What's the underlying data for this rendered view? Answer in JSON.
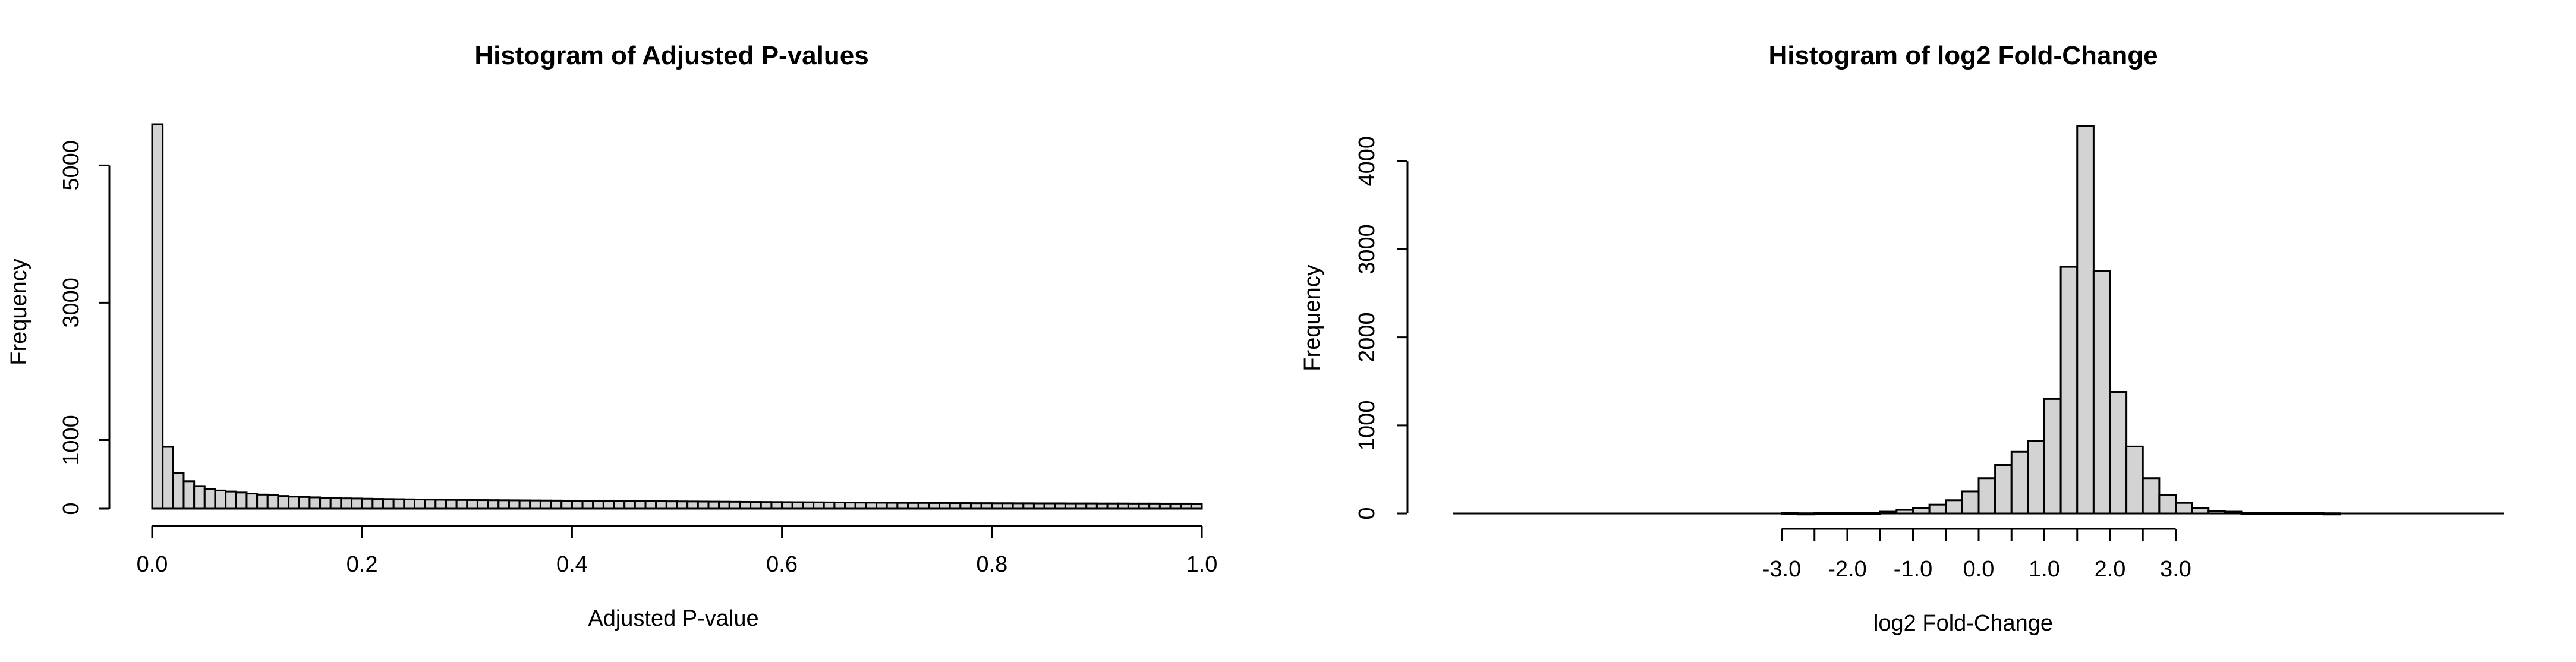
{
  "colors": {
    "bar_fill": "#d3d3d3",
    "bar_stroke": "#000000",
    "background": "#ffffff"
  },
  "chart_data": [
    {
      "type": "bar",
      "title": "Histogram of Adjusted P-values",
      "xlabel": "Adjusted P-value",
      "ylabel": "Frequency",
      "bin_start": 0.0,
      "bin_width": 0.01,
      "xlim": [
        0.0,
        1.0
      ],
      "ylim": [
        0,
        5600
      ],
      "x_ticks": [
        {
          "value": 0.0,
          "label": "0.0"
        },
        {
          "value": 0.2,
          "label": "0.2"
        },
        {
          "value": 0.4,
          "label": "0.4"
        },
        {
          "value": 0.6,
          "label": "0.6"
        },
        {
          "value": 0.8,
          "label": "0.8"
        },
        {
          "value": 1.0,
          "label": "1.0"
        }
      ],
      "y_ticks": [
        {
          "value": 0,
          "label": "0"
        },
        {
          "value": 1000,
          "label": "1000"
        },
        {
          "value": 3000,
          "label": "3000"
        },
        {
          "value": 5000,
          "label": "5000"
        }
      ],
      "values": [
        5600,
        900,
        520,
        400,
        330,
        290,
        265,
        250,
        235,
        220,
        205,
        195,
        185,
        175,
        170,
        165,
        160,
        155,
        150,
        148,
        145,
        142,
        140,
        138,
        136,
        134,
        132,
        130,
        128,
        127,
        126,
        125,
        124,
        123,
        122,
        121,
        120,
        119,
        118,
        117,
        116,
        115,
        114,
        113,
        112,
        111,
        110,
        109,
        108,
        107,
        106,
        105,
        104,
        103,
        102,
        101,
        100,
        99,
        98,
        97,
        96,
        95,
        94,
        93,
        92,
        91,
        90,
        89,
        88,
        87,
        86,
        85,
        84,
        84,
        83,
        83,
        82,
        82,
        81,
        81,
        80,
        80,
        79,
        79,
        78,
        78,
        78,
        77,
        77,
        77,
        76,
        76,
        76,
        75,
        75,
        75,
        74,
        74,
        74,
        73
      ]
    },
    {
      "type": "bar",
      "title": "Histogram of log2 Fold-Change",
      "xlabel": "log2 Fold-Change",
      "ylabel": "Frequency",
      "bin_start": -8.0,
      "bin_width": 0.25,
      "xlim": [
        -8.0,
        8.0
      ],
      "ylim": [
        0,
        4400
      ],
      "x_ticks": [
        {
          "value": -3.0,
          "label": "-3.0"
        },
        {
          "value": -2.0,
          "label": "-2.0"
        },
        {
          "value": -1.0,
          "label": "-1.0"
        },
        {
          "value": 0.0,
          "label": "0.0"
        },
        {
          "value": 1.0,
          "label": "1.0"
        },
        {
          "value": 2.0,
          "label": "2.0"
        },
        {
          "value": 3.0,
          "label": "3.0"
        }
      ],
      "x_minor_ticks": [
        -2.5,
        -1.5,
        -0.5,
        0.5,
        1.5,
        2.5
      ],
      "y_ticks": [
        {
          "value": 0,
          "label": "0"
        },
        {
          "value": 1000,
          "label": "1000"
        },
        {
          "value": 2000,
          "label": "2000"
        },
        {
          "value": 3000,
          "label": "3000"
        },
        {
          "value": 4000,
          "label": "4000"
        }
      ],
      "values": [
        0,
        0,
        0,
        0,
        0,
        0,
        0,
        0,
        0,
        0,
        0,
        0,
        0,
        0,
        0,
        0,
        0,
        0,
        0,
        0,
        5,
        2,
        5,
        5,
        5,
        10,
        20,
        40,
        60,
        100,
        150,
        250,
        400,
        550,
        700,
        820,
        1300,
        2800,
        4400,
        2750,
        1380,
        760,
        400,
        210,
        120,
        60,
        30,
        20,
        10,
        5,
        5,
        5,
        5,
        2,
        0,
        0,
        0,
        0,
        0,
        0,
        0,
        0,
        0,
        0
      ]
    }
  ]
}
